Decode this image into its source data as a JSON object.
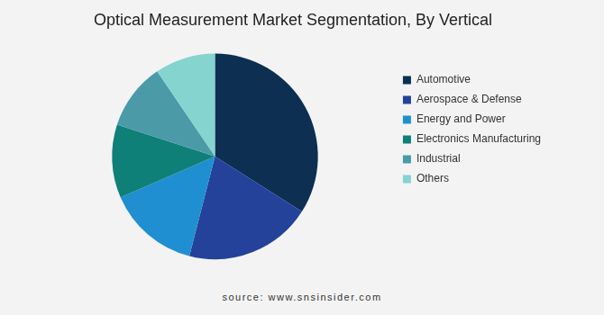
{
  "chart_data": {
    "type": "pie",
    "title": "Optical Measurement Market Segmentation, By Vertical",
    "categories": [
      "Automotive",
      "Aerospace & Defense",
      "Energy and Power",
      "Electronics Manufacturing",
      "Industrial",
      "Others"
    ],
    "values": [
      34,
      20,
      14.5,
      11.5,
      10.5,
      9.5
    ],
    "colors": [
      "#0c2f52",
      "#24429a",
      "#1f8fd1",
      "#0f8077",
      "#4a9aa8",
      "#85d4d0"
    ],
    "legend": "right",
    "source": "source: www.snsinsider.com"
  }
}
